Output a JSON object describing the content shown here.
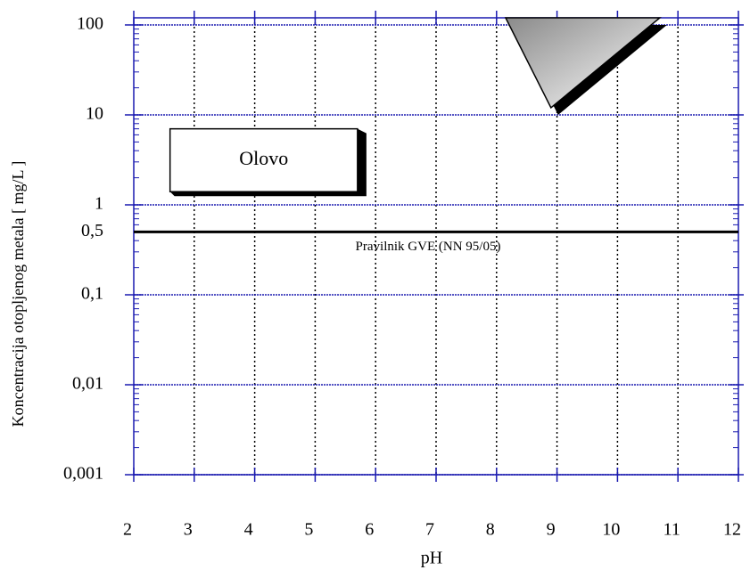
{
  "chart_data": {
    "type": "region",
    "xlabel": "pH",
    "ylabel": "Koncentracija otopljenog metala [ mg/L ]",
    "xlim": [
      2,
      12
    ],
    "xticks": [
      2,
      3,
      4,
      5,
      6,
      7,
      8,
      9,
      10,
      11,
      12
    ],
    "ylim": [
      0.001,
      120
    ],
    "ylog": true,
    "yticks": [
      {
        "value": 0.001,
        "label": "0,001"
      },
      {
        "value": 0.01,
        "label": "0,01"
      },
      {
        "value": 0.1,
        "label": "0,1"
      },
      1,
      10,
      100
    ],
    "grid": true,
    "axis_color": "#1a1ab0",
    "threshold": {
      "value": 0.5,
      "label": "0,5",
      "text": "Pravilnik GVE (NN 95/05)"
    },
    "regions": [
      {
        "name": "Olovo",
        "x": [
          2.6,
          5.7
        ],
        "y": [
          1.4,
          7
        ]
      }
    ],
    "polygons": [
      {
        "points": [
          [
            8.15,
            120
          ],
          [
            10.7,
            120
          ],
          [
            8.9,
            12
          ]
        ]
      }
    ]
  }
}
